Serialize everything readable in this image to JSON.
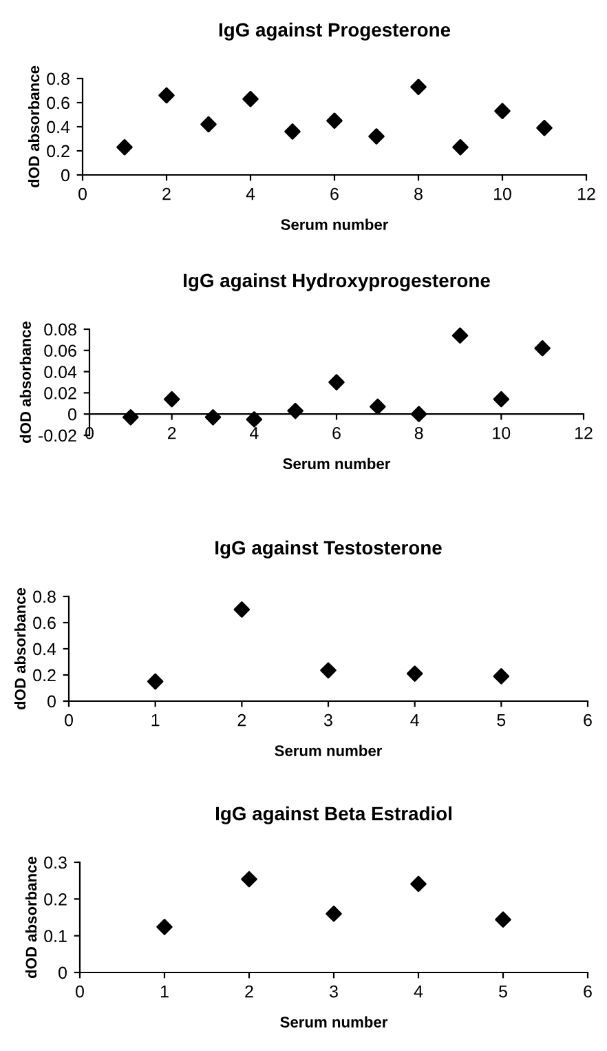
{
  "chart_data": [
    {
      "type": "scatter",
      "title": "IgG against Progesterone",
      "xlabel": "Serum number",
      "ylabel": "dOD absorbance",
      "x": [
        1,
        2,
        3,
        4,
        5,
        6,
        7,
        8,
        9,
        10,
        11
      ],
      "series": [
        {
          "color": "#000000",
          "values": [
            0.23,
            0.66,
            0.42,
            0.63,
            0.36,
            0.45,
            0.32,
            0.73,
            0.23,
            0.53,
            0.39
          ]
        }
      ],
      "xlim": [
        0,
        12
      ],
      "xticks": [
        0,
        2,
        4,
        6,
        8,
        10,
        12
      ],
      "ylim": [
        0,
        0.8
      ],
      "yticks": [
        0,
        0.2,
        0.4,
        0.6,
        0.8
      ],
      "marker": "diamond",
      "grid": false,
      "legend": false
    },
    {
      "type": "scatter",
      "title": "IgG against Hydroxyprogesterone",
      "xlabel": "Serum number",
      "ylabel": "dOD absorbance",
      "x": [
        1,
        2,
        3,
        4,
        5,
        6,
        7,
        8,
        9,
        10,
        11
      ],
      "series": [
        {
          "color": "#000000",
          "values": [
            -0.003,
            0.014,
            -0.003,
            -0.005,
            0.003,
            0.03,
            0.007,
            0.0,
            0.074,
            0.014,
            0.062
          ]
        }
      ],
      "xlim": [
        0,
        12
      ],
      "xticks": [
        0,
        2,
        4,
        6,
        8,
        10,
        12
      ],
      "ylim": [
        -0.02,
        0.08
      ],
      "yticks": [
        -0.02,
        0,
        0.02,
        0.04,
        0.06,
        0.08
      ],
      "marker": "diamond",
      "grid": false,
      "legend": false
    },
    {
      "type": "scatter",
      "title": "IgG against Testosterone",
      "xlabel": "Serum number",
      "ylabel": "dOD absorbance",
      "x": [
        1,
        2,
        3,
        4,
        5
      ],
      "series": [
        {
          "color": "#000000",
          "values": [
            0.15,
            0.7,
            0.235,
            0.21,
            0.19
          ]
        }
      ],
      "xlim": [
        0,
        6
      ],
      "xticks": [
        0,
        1,
        2,
        3,
        4,
        5,
        6
      ],
      "ylim": [
        0,
        0.8
      ],
      "yticks": [
        0,
        0.2,
        0.4,
        0.6,
        0.8
      ],
      "marker": "diamond",
      "grid": false,
      "legend": false
    },
    {
      "type": "scatter",
      "title": "IgG against Beta Estradiol",
      "xlabel": "Serum number",
      "ylabel": "dOD absorbance",
      "x": [
        1,
        2,
        3,
        4,
        5
      ],
      "series": [
        {
          "color": "#000000",
          "values": [
            0.124,
            0.254,
            0.16,
            0.241,
            0.144
          ]
        }
      ],
      "xlim": [
        0,
        6
      ],
      "xticks": [
        0,
        1,
        2,
        3,
        4,
        5,
        6
      ],
      "ylim": [
        0,
        0.3
      ],
      "yticks": [
        0,
        0.1,
        0.2,
        0.3
      ],
      "marker": "diamond",
      "grid": false,
      "legend": false
    }
  ]
}
